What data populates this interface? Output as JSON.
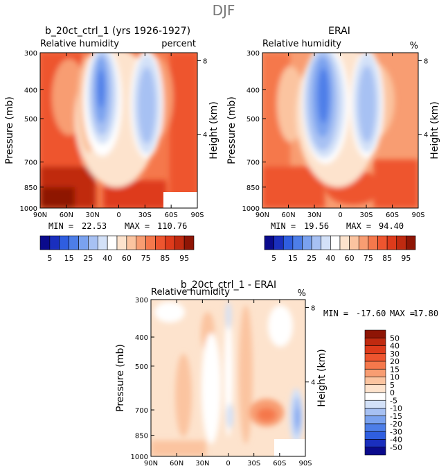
{
  "figure_title": "DJF",
  "colors": {
    "positive_scale": [
      "#0a0a8c",
      "#1a2fbe",
      "#2f5ee0",
      "#4d7ee8",
      "#7aa2ef",
      "#a7c1f3",
      "#d3e1f8",
      "#ffffff",
      "#fde3cd",
      "#fbc4a0",
      "#f89d72",
      "#f5784c",
      "#ee552f",
      "#de3b1b",
      "#c02a10",
      "#8e1505"
    ],
    "diff_scale": [
      "#0a0a8c",
      "#1a2fbe",
      "#2f5ee0",
      "#4d7ee8",
      "#7aa2ef",
      "#a7c1f3",
      "#d3e1f8",
      "#ffffff",
      "#fde3cd",
      "#fbc4a0",
      "#f89d72",
      "#f5784c",
      "#ee552f",
      "#de3b1b",
      "#c02a10",
      "#8e1505"
    ]
  },
  "chart_data": [
    {
      "type": "heatmap",
      "id": "model",
      "title": "b_20ct_ctrl_1 (yrs 1926-1927)",
      "left_label": "Relative humidity",
      "right_label": "percent",
      "ylabel": "Pressure (mb)",
      "y2label": "Height (km)",
      "x_ticks": [
        "90N",
        "60N",
        "30N",
        "0",
        "30S",
        "60S",
        "90S"
      ],
      "y_ticks": [
        "300",
        "400",
        "500",
        "700",
        "850",
        "1000"
      ],
      "y2_ticks": [
        "8",
        "4"
      ],
      "min_label": "MIN =",
      "min_value": "22.53",
      "max_label": "MAX =",
      "max_value": "110.76",
      "colorbar_labels": [
        "5",
        "15",
        "25",
        "40",
        "60",
        "75",
        "85",
        "95"
      ]
    },
    {
      "type": "heatmap",
      "id": "obs",
      "title": "ERAI",
      "left_label": "Relative humidity",
      "right_label": "%",
      "ylabel": "Pressure (mb)",
      "y2label": "Height (km)",
      "x_ticks": [
        "90N",
        "60N",
        "30N",
        "0",
        "30S",
        "60S",
        "90S"
      ],
      "y_ticks": [
        "300",
        "400",
        "500",
        "700",
        "850",
        "1000"
      ],
      "y2_ticks": [
        "8",
        "4"
      ],
      "min_label": "MIN =",
      "min_value": "19.56",
      "max_label": "MAX =",
      "max_value": "94.40",
      "colorbar_labels": [
        "5",
        "15",
        "25",
        "40",
        "60",
        "75",
        "85",
        "95"
      ]
    },
    {
      "type": "heatmap",
      "id": "diff",
      "title": "b_20ct_ctrl_1 - ERAI",
      "left_label": "Relative humidity",
      "right_label": "%",
      "ylabel": "Pressure (mb)",
      "y2label": "Height (km)",
      "x_ticks": [
        "90N",
        "60N",
        "30N",
        "0",
        "30S",
        "60S",
        "90S"
      ],
      "y_ticks": [
        "300",
        "400",
        "500",
        "700",
        "850",
        "1000"
      ],
      "y2_ticks": [
        "8",
        "4"
      ],
      "min_label": "MIN =",
      "min_value": "-17.60",
      "max_label": "MAX =",
      "max_value": "17.80",
      "colorbar_labels": [
        "50",
        "40",
        "30",
        "20",
        "15",
        "10",
        "5",
        "0",
        "-5",
        "-10",
        "-15",
        "-20",
        "-30",
        "-40",
        "-50"
      ]
    }
  ]
}
